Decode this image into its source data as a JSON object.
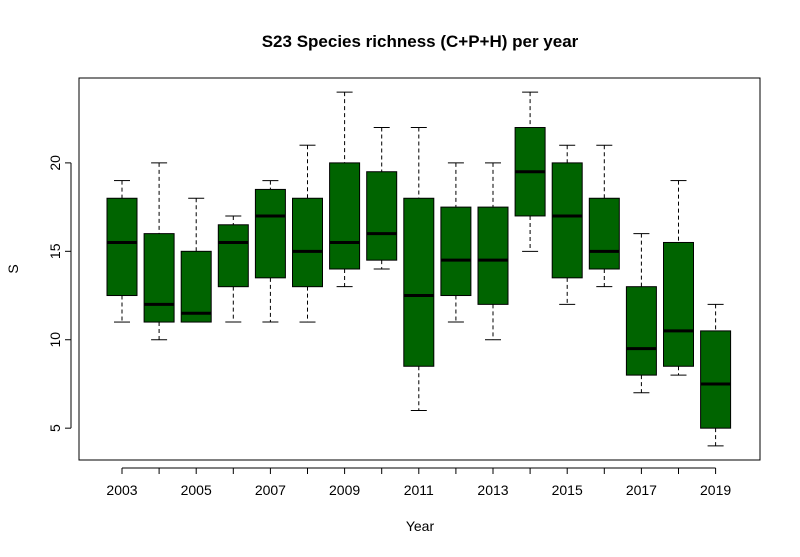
{
  "chart_data": {
    "type": "boxplot",
    "title": "S23 Species richness (C+P+H) per year",
    "xlabel": "Year",
    "ylabel": "S",
    "ylim": [
      3.2,
      24.8
    ],
    "yticks": [
      5,
      10,
      15,
      20
    ],
    "x_tick_labels_shown": [
      "2003",
      "2005",
      "2007",
      "2009",
      "2011",
      "2013",
      "2015",
      "2017",
      "2019"
    ],
    "box_color": "#006400",
    "categories": [
      "2003",
      "2004",
      "2005",
      "2006",
      "2007",
      "2008",
      "2009",
      "2010",
      "2011",
      "2012",
      "2013",
      "2014",
      "2015",
      "2016",
      "2017",
      "2018",
      "2019"
    ],
    "boxes": [
      {
        "year": "2003",
        "min": 11,
        "q1": 12.5,
        "median": 15.5,
        "q3": 18,
        "max": 19
      },
      {
        "year": "2004",
        "min": 10,
        "q1": 11,
        "median": 12,
        "q3": 16,
        "max": 20
      },
      {
        "year": "2005",
        "min": 11,
        "q1": 11,
        "median": 11.5,
        "q3": 15,
        "max": 18
      },
      {
        "year": "2006",
        "min": 11,
        "q1": 13,
        "median": 15.5,
        "q3": 16.5,
        "max": 17
      },
      {
        "year": "2007",
        "min": 11,
        "q1": 13.5,
        "median": 17,
        "q3": 18.5,
        "max": 19
      },
      {
        "year": "2008",
        "min": 11,
        "q1": 13,
        "median": 15,
        "q3": 18,
        "max": 21
      },
      {
        "year": "2009",
        "min": 13,
        "q1": 14,
        "median": 15.5,
        "q3": 20,
        "max": 24
      },
      {
        "year": "2010",
        "min": 14,
        "q1": 14.5,
        "median": 16,
        "q3": 19.5,
        "max": 22
      },
      {
        "year": "2011",
        "min": 6,
        "q1": 8.5,
        "median": 12.5,
        "q3": 18,
        "max": 22
      },
      {
        "year": "2012",
        "min": 11,
        "q1": 12.5,
        "median": 14.5,
        "q3": 17.5,
        "max": 20
      },
      {
        "year": "2013",
        "min": 10,
        "q1": 12,
        "median": 14.5,
        "q3": 17.5,
        "max": 20
      },
      {
        "year": "2014",
        "min": 15,
        "q1": 17,
        "median": 19.5,
        "q3": 22,
        "max": 24
      },
      {
        "year": "2015",
        "min": 12,
        "q1": 13.5,
        "median": 17,
        "q3": 20,
        "max": 21
      },
      {
        "year": "2016",
        "min": 13,
        "q1": 14,
        "median": 15,
        "q3": 18,
        "max": 21
      },
      {
        "year": "2017",
        "min": 7,
        "q1": 8,
        "median": 9.5,
        "q3": 13,
        "max": 16
      },
      {
        "year": "2018",
        "min": 8,
        "q1": 8.5,
        "median": 10.5,
        "q3": 15.5,
        "max": 19
      },
      {
        "year": "2019",
        "min": 4,
        "q1": 5,
        "median": 7.5,
        "q3": 10.5,
        "max": 12
      }
    ]
  }
}
